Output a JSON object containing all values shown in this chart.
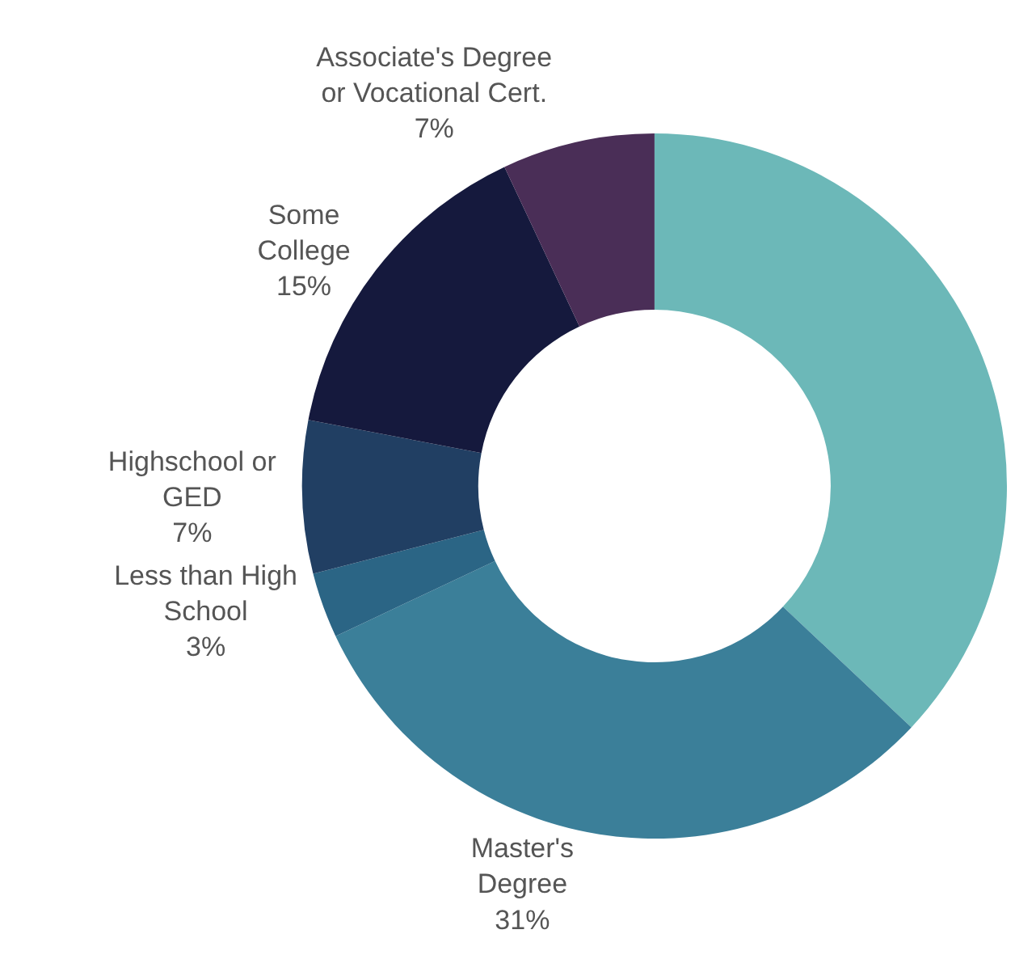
{
  "chart_data": {
    "type": "donut",
    "categories": [
      null,
      "Master's\nDegree",
      "Less than High\nSchool",
      "Highschool or\nGED",
      "Some\nCollege",
      "Associate's Degree\nor Vocational Cert."
    ],
    "values": [
      37,
      31,
      3,
      7,
      15,
      7
    ],
    "value_labels": [
      null,
      "31%",
      "3%",
      "7%",
      "15%",
      "7%"
    ],
    "colors": [
      "#6cb8b8",
      "#3b7f99",
      "#2b6585",
      "#213f63",
      "#15193d",
      "#4a2e57"
    ],
    "legend": false
  }
}
